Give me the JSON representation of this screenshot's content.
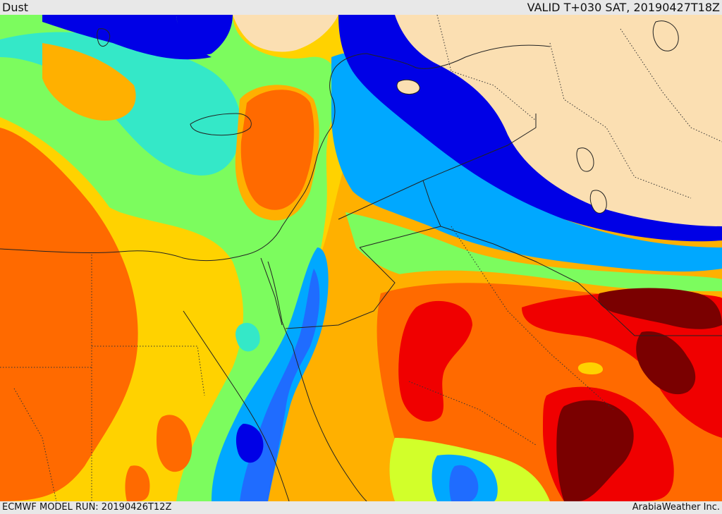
{
  "header": {
    "title": "Dust",
    "valid_label": "VALID T+030 SAT, 20190427T18Z"
  },
  "footer": {
    "model_run": "ECMWF MODEL RUN: 20190426T12Z",
    "credit": "ArabiaWeather Inc."
  },
  "map": {
    "land_color": "#fbdfb2",
    "palette": [
      "#0000e6",
      "#1f6cff",
      "#00a8ff",
      "#34e8c8",
      "#7cfc5e",
      "#d2ff2a",
      "#ffd200",
      "#ffb000",
      "#ff6a00",
      "#f00000",
      "#7a0000"
    ]
  }
}
